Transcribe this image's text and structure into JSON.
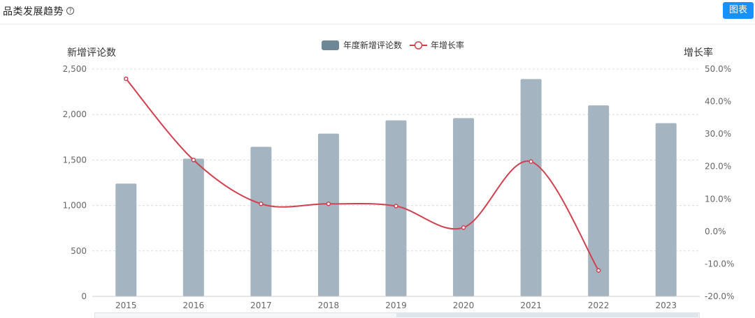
{
  "header": {
    "title": "品类发展趋势",
    "help_icon": "question-circle-icon",
    "chart_button_label": "图表"
  },
  "colors": {
    "bar": "#a4b5c1",
    "legend_bar": "#6d8797",
    "line": "#d0404f",
    "button": "#1890ff"
  },
  "chart_data": {
    "type": "bar",
    "categories": [
      "2015",
      "2016",
      "2017",
      "2018",
      "2019",
      "2020",
      "2021",
      "2022",
      "2023"
    ],
    "series": [
      {
        "name": "年度新增评论数",
        "type": "bar",
        "axis": "left",
        "values": [
          1240,
          1515,
          1645,
          1790,
          1935,
          1960,
          2390,
          2100,
          1905
        ]
      },
      {
        "name": "年增长率",
        "type": "line",
        "axis": "right",
        "values": [
          47.0,
          22.0,
          8.5,
          8.5,
          7.8,
          1.2,
          21.5,
          -12.0,
          null
        ]
      }
    ],
    "ylabel_left": "新增评论数",
    "ylabel_right": "增长率",
    "yticks_left": [
      "2,500",
      "2,000",
      "1,500",
      "1,000",
      "500",
      "0"
    ],
    "yticks_right": [
      "50.0%",
      "40.0%",
      "30.0%",
      "20.0%",
      "10.0%",
      "0.0%",
      "-10.0%",
      "-20.0%"
    ],
    "ylim_left": [
      0,
      2500
    ],
    "ylim_right": [
      -20,
      50
    ],
    "grid": true,
    "legend_position": "top-center"
  }
}
